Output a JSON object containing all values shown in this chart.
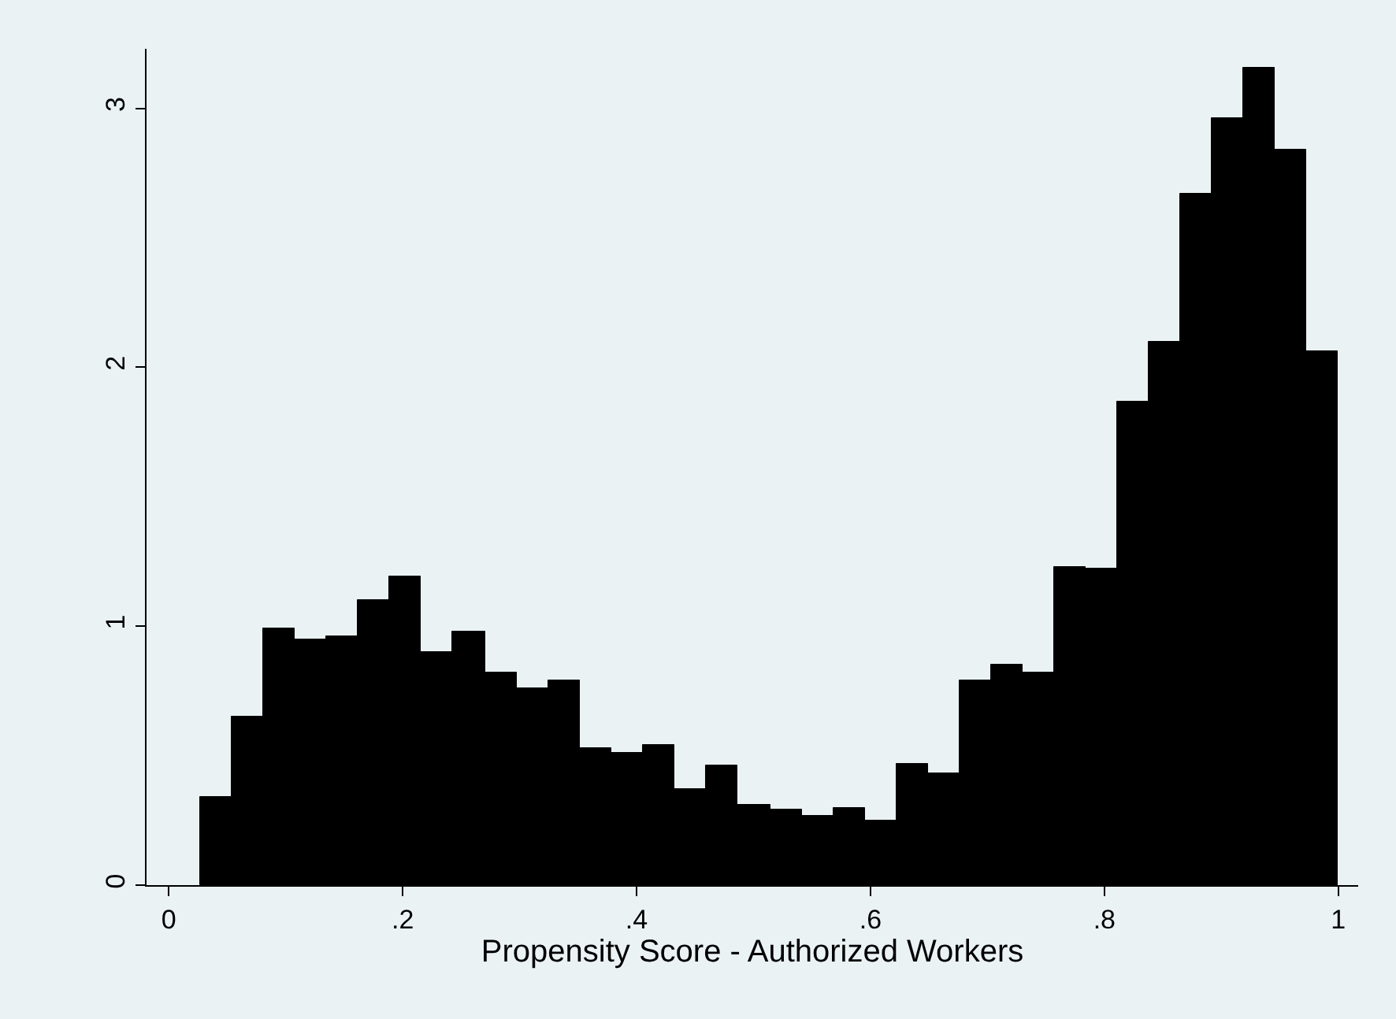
{
  "chart_data": {
    "type": "histogram",
    "xlabel": "Propensity Score - Authorized Workers",
    "bins": [
      0.027,
      0.054,
      0.081,
      0.108,
      0.135,
      0.162,
      0.189,
      0.216,
      0.243,
      0.27,
      0.297,
      0.324,
      0.351,
      0.378,
      0.405,
      0.432,
      0.459,
      0.486,
      0.514,
      0.541,
      0.568,
      0.595,
      0.622,
      0.649,
      0.676,
      0.703,
      0.73,
      0.757,
      0.784,
      0.811,
      0.838,
      0.865,
      0.892,
      0.919,
      0.946,
      0.973,
      1.0
    ],
    "values": [
      0.34,
      0.65,
      0.99,
      0.95,
      0.96,
      1.1,
      1.19,
      0.9,
      0.98,
      0.82,
      0.76,
      0.79,
      0.53,
      0.51,
      0.54,
      0.37,
      0.46,
      0.31,
      0.29,
      0.27,
      0.3,
      0.25,
      0.47,
      0.43,
      0.79,
      0.85,
      0.82,
      1.23,
      1.22,
      1.87,
      2.1,
      2.67,
      2.96,
      3.16,
      2.84,
      2.06
    ],
    "color": "#000000",
    "xlim": [
      -0.019,
      1.017
    ],
    "ylim": [
      0,
      3.23
    ],
    "xticks": [
      {
        "value": 0,
        "label": "0"
      },
      {
        "value": 0.2,
        "label": ".2"
      },
      {
        "value": 0.4,
        "label": ".4"
      },
      {
        "value": 0.6,
        "label": ".6"
      },
      {
        "value": 0.8,
        "label": ".8"
      },
      {
        "value": 1,
        "label": "1"
      }
    ],
    "yticks": [
      0,
      1,
      2,
      3
    ],
    "grid": false
  }
}
